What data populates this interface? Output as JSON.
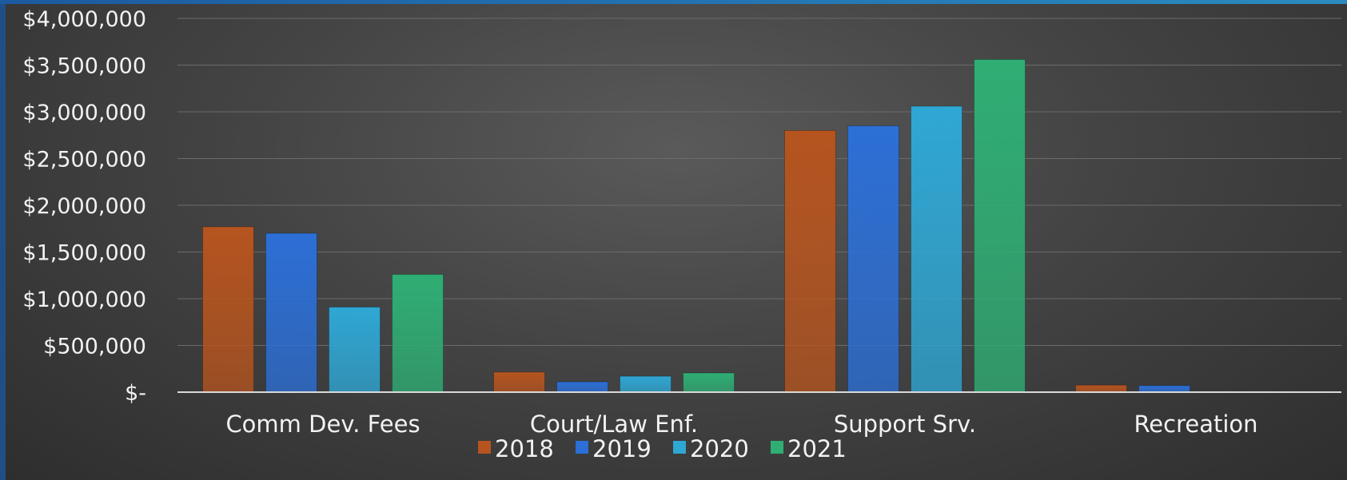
{
  "chart_data": {
    "type": "bar",
    "categories": [
      "Comm Dev. Fees",
      "Court/Law Enf.",
      "Support Srv.",
      "Recreation"
    ],
    "series": [
      {
        "name": "2018",
        "values": [
          1770000,
          215000,
          2800000,
          75000
        ],
        "color": "#b5541f"
      },
      {
        "name": "2019",
        "values": [
          1700000,
          110000,
          2850000,
          70000
        ],
        "color": "#2c6fd6"
      },
      {
        "name": "2020",
        "values": [
          910000,
          170000,
          3060000,
          0
        ],
        "color": "#2fa7d4"
      },
      {
        "name": "2021",
        "values": [
          1260000,
          205000,
          3560000,
          0
        ],
        "color": "#2fae74"
      }
    ],
    "ylim": [
      0,
      4000000
    ],
    "yticks": [
      {
        "value": 0,
        "label": "$-"
      },
      {
        "value": 500000,
        "label": "$500,000"
      },
      {
        "value": 1000000,
        "label": "$1,000,000"
      },
      {
        "value": 1500000,
        "label": "$1,500,000"
      },
      {
        "value": 2000000,
        "label": "$2,000,000"
      },
      {
        "value": 2500000,
        "label": "$2,500,000"
      },
      {
        "value": 3000000,
        "label": "$3,000,000"
      },
      {
        "value": 3500000,
        "label": "$3,500,000"
      },
      {
        "value": 4000000,
        "label": "$4,000,000"
      }
    ],
    "grid": true,
    "legend_position": "bottom"
  }
}
